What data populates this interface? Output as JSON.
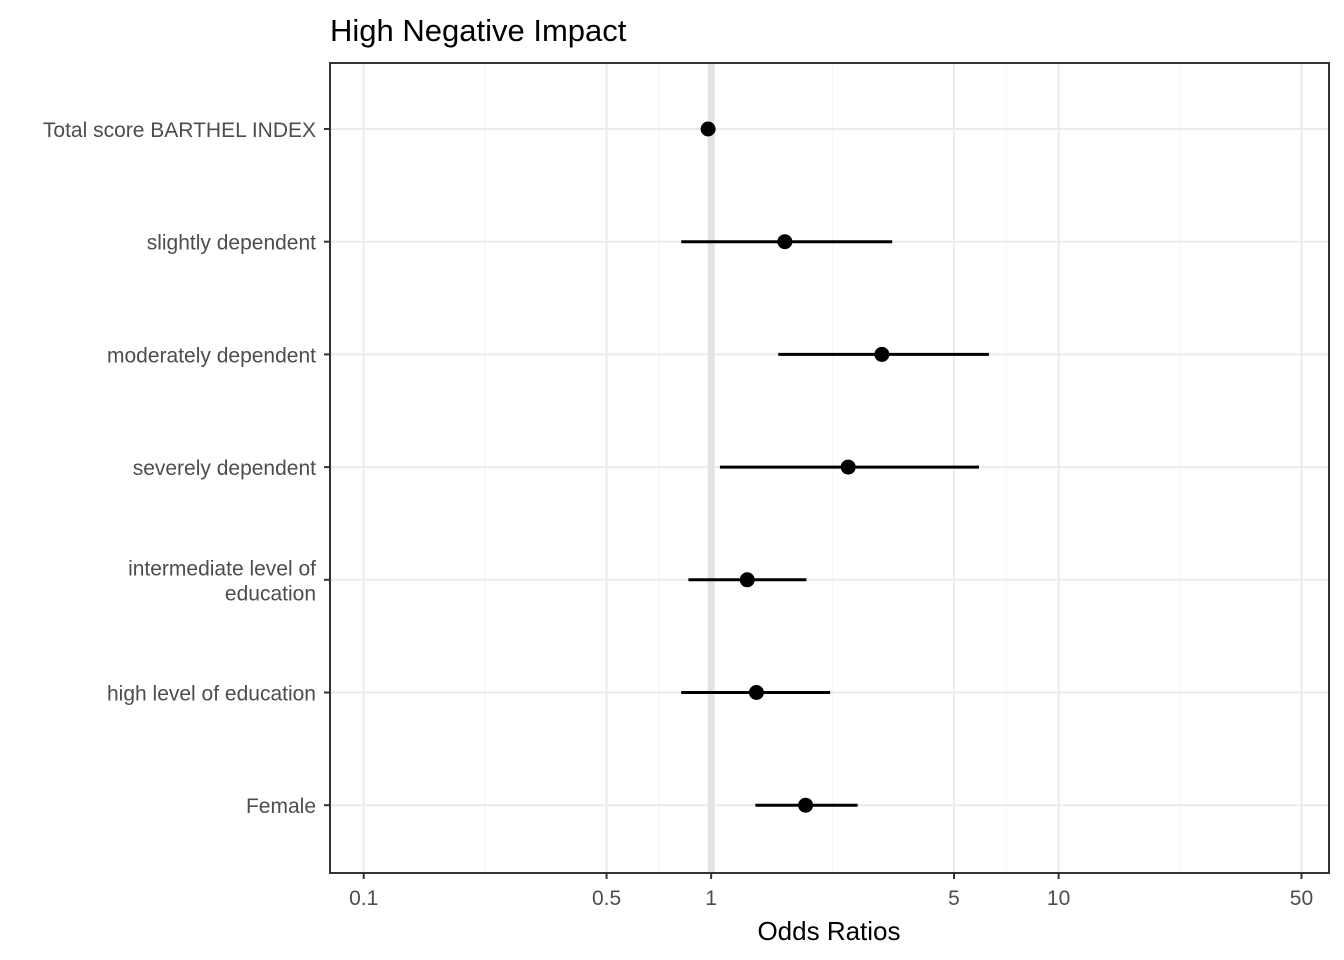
{
  "chart_data": {
    "type": "scatter",
    "subtype": "forest-plot",
    "title": "High Negative Impact",
    "xlabel": "Odds Ratios",
    "ylabel": "",
    "x_scale": "log10",
    "xlim": [
      0.08,
      60
    ],
    "x_ticks": [
      {
        "value": 0.1,
        "label": "0.1"
      },
      {
        "value": 0.5,
        "label": "0.5"
      },
      {
        "value": 1,
        "label": "1"
      },
      {
        "value": 5,
        "label": "5"
      },
      {
        "value": 10,
        "label": "10"
      },
      {
        "value": 50,
        "label": "50"
      }
    ],
    "reference_value": 1,
    "grid": true,
    "colors": {
      "point": "#000000",
      "reference_line": "#e3e3e3"
    },
    "terms": [
      {
        "label": [
          "Total score BARTHEL INDEX"
        ],
        "estimate": 0.98,
        "ci_low": 0.98,
        "ci_high": 0.98
      },
      {
        "label": [
          "slightly dependent"
        ],
        "estimate": 1.63,
        "ci_low": 0.82,
        "ci_high": 3.32
      },
      {
        "label": [
          "moderately dependent"
        ],
        "estimate": 3.1,
        "ci_low": 1.56,
        "ci_high": 6.3
      },
      {
        "label": [
          "severely dependent"
        ],
        "estimate": 2.48,
        "ci_low": 1.06,
        "ci_high": 5.9
      },
      {
        "label": [
          "intermediate level of",
          "education"
        ],
        "estimate": 1.27,
        "ci_low": 0.86,
        "ci_high": 1.88
      },
      {
        "label": [
          "high level of education"
        ],
        "estimate": 1.35,
        "ci_low": 0.82,
        "ci_high": 2.2
      },
      {
        "label": [
          "Female"
        ],
        "estimate": 1.87,
        "ci_low": 1.34,
        "ci_high": 2.64
      }
    ]
  }
}
